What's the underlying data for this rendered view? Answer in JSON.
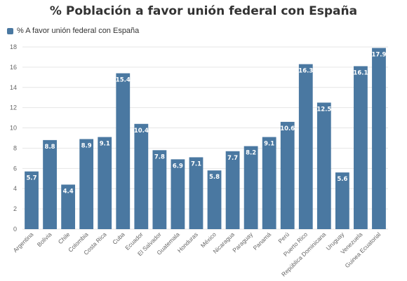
{
  "chart_data": {
    "type": "bar",
    "title": "% Población a favor unión federal con España",
    "legend": {
      "position": "top-left",
      "label": "% A favor unión federal con España"
    },
    "categories": [
      "Argentina",
      "Bolivia",
      "Chile",
      "Colombia",
      "Costa Rica",
      "Cuba",
      "Ecuador",
      "El Salvador",
      "Guatemala",
      "Honduras",
      "México",
      "Nicaragua",
      "Paraguay",
      "Panamá",
      "Perú",
      "Puerto Rico",
      "República Dominicana",
      "Uruguay",
      "Venezuela",
      "Guinea Ecuatorial"
    ],
    "series": [
      {
        "name": "% A favor unión federal con España",
        "values": [
          5.7,
          8.8,
          4.4,
          8.9,
          9.1,
          15.4,
          10.4,
          7.8,
          6.9,
          7.1,
          5.8,
          7.7,
          8.2,
          9.1,
          10.6,
          16.3,
          12.5,
          5.6,
          16.1,
          17.9
        ]
      }
    ],
    "data_labels": [
      "5.7",
      "8.8",
      "4.4",
      "8.9",
      "9.1",
      "15.4",
      "10.4",
      "7.8",
      "6.9",
      "7.1",
      "5.8",
      "7.7",
      "8.2",
      "9.1",
      "10.6",
      "16.3",
      "12.5",
      "5.6",
      "16.1",
      "17.9"
    ],
    "yticks": [
      "0",
      "2",
      "4",
      "6",
      "8",
      "10",
      "12",
      "14",
      "16",
      "18"
    ],
    "ylim": [
      0,
      18
    ],
    "grid": true,
    "colors": {
      "bar": "#4a78a1",
      "grid": "#e6e6e6",
      "text": "#666666"
    }
  }
}
